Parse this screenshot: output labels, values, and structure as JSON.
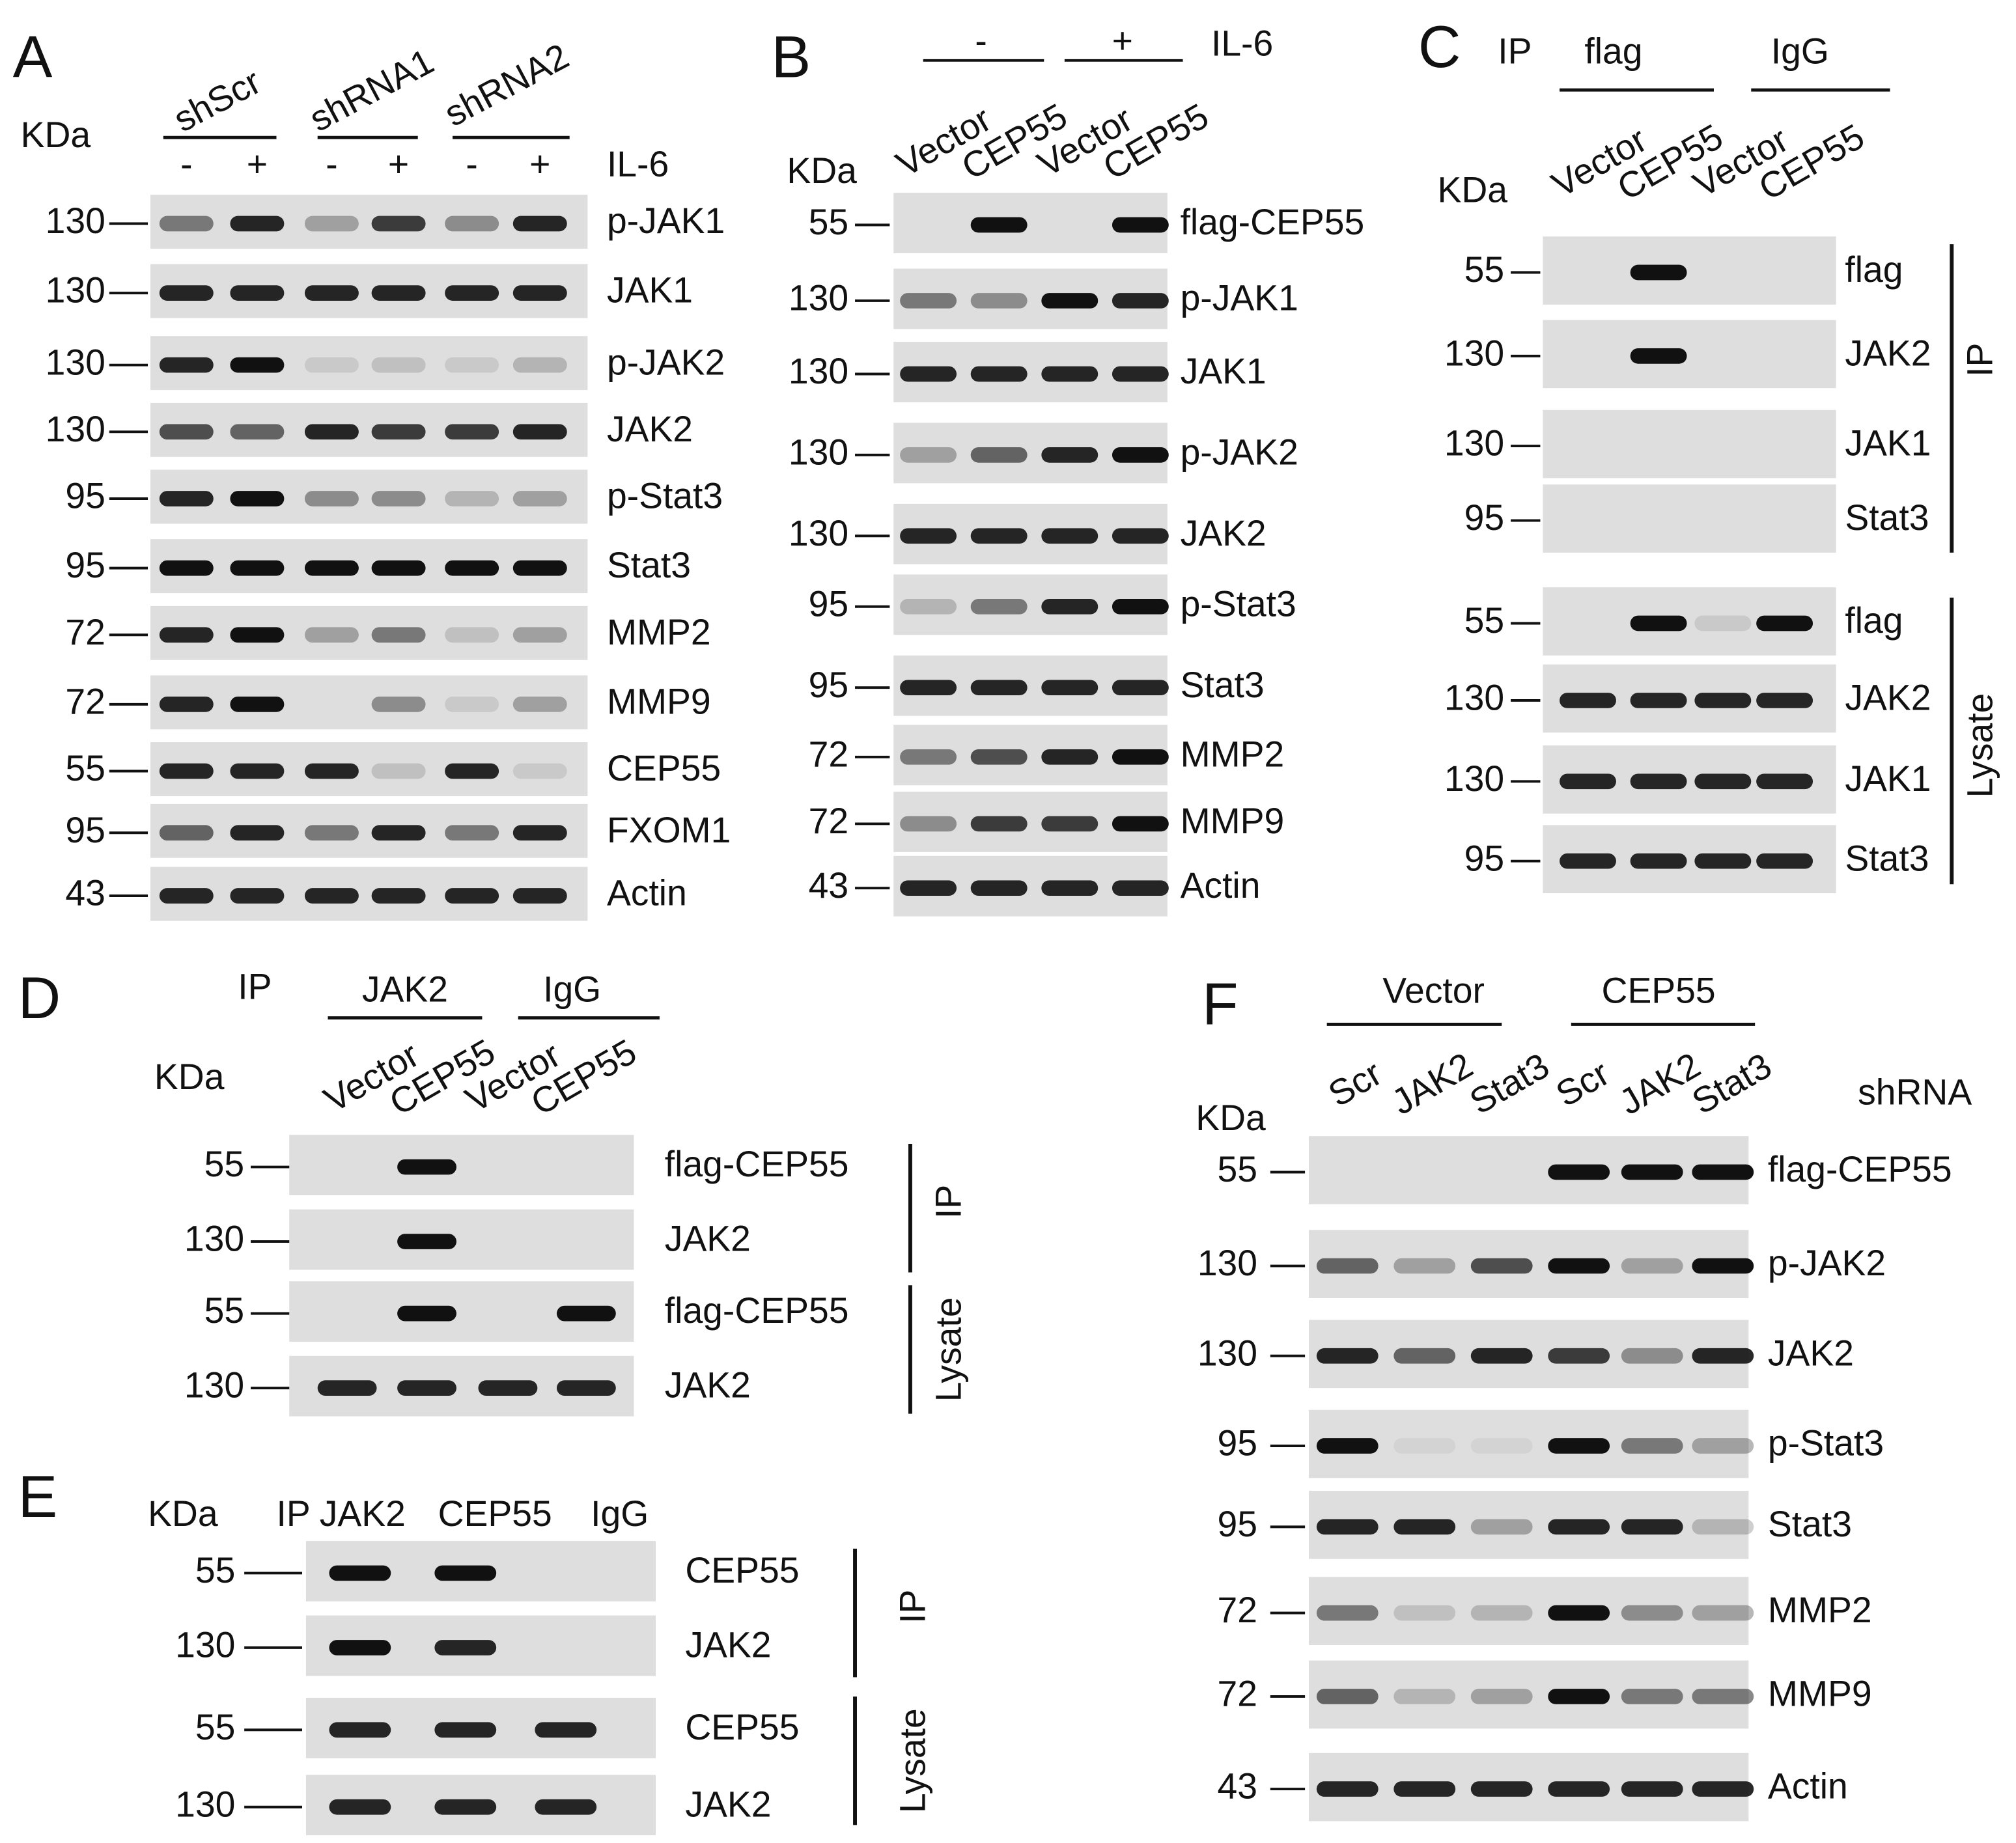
{
  "panels": [
    {
      "letter": "A",
      "kda": "KDa",
      "groups": [
        "shScr",
        "shRNA1",
        "shRNA2"
      ],
      "treatment": {
        "signs": [
          "-",
          "+",
          "-",
          "+",
          "-",
          "+"
        ],
        "label": "IL-6"
      },
      "rows": [
        {
          "mw": 130,
          "label": "p-JAK1"
        },
        {
          "mw": 130,
          "label": "JAK1"
        },
        {
          "mw": 130,
          "label": "p-JAK2"
        },
        {
          "mw": 130,
          "label": "JAK2"
        },
        {
          "mw": 95,
          "label": "p-Stat3"
        },
        {
          "mw": 95,
          "label": "Stat3"
        },
        {
          "mw": 72,
          "label": "MMP2"
        },
        {
          "mw": 72,
          "label": "MMP9"
        },
        {
          "mw": 55,
          "label": "CEP55"
        },
        {
          "mw": 95,
          "label": "FXOM1"
        },
        {
          "mw": 43,
          "label": "Actin"
        }
      ]
    },
    {
      "letter": "B",
      "kda": "KDa",
      "treatment": {
        "signs": [
          "-",
          "+"
        ],
        "label": "IL-6"
      },
      "lanes": [
        "Vector",
        "CEP55",
        "Vector",
        "CEP55"
      ],
      "rows": [
        {
          "mw": 55,
          "label": "flag-CEP55"
        },
        {
          "mw": 130,
          "label": "p-JAK1"
        },
        {
          "mw": 130,
          "label": "JAK1"
        },
        {
          "mw": 130,
          "label": "p-JAK2"
        },
        {
          "mw": 130,
          "label": "JAK2"
        },
        {
          "mw": 95,
          "label": "p-Stat3"
        },
        {
          "mw": 95,
          "label": "Stat3"
        },
        {
          "mw": 72,
          "label": "MMP2"
        },
        {
          "mw": 72,
          "label": "MMP9"
        },
        {
          "mw": 43,
          "label": "Actin"
        }
      ]
    },
    {
      "letter": "C",
      "ip": "IP",
      "kda": "KDa",
      "groups": [
        "flag",
        "IgG"
      ],
      "lanes": [
        "Vector",
        "CEP55",
        "Vector",
        "CEP55"
      ],
      "rows": [
        {
          "mw": 55,
          "label": "flag"
        },
        {
          "mw": 130,
          "label": "JAK2"
        },
        {
          "mw": 130,
          "label": "JAK1"
        },
        {
          "mw": 95,
          "label": "Stat3"
        },
        {
          "mw": 55,
          "label": "flag"
        },
        {
          "mw": 130,
          "label": "JAK2"
        },
        {
          "mw": 130,
          "label": "JAK1"
        },
        {
          "mw": 95,
          "label": "Stat3"
        }
      ],
      "brackets": [
        "IP",
        "Lysate"
      ]
    },
    {
      "letter": "D",
      "ip": "IP",
      "kda": "KDa",
      "groups": [
        "JAK2",
        "IgG"
      ],
      "lanes": [
        "Vector",
        "CEP55",
        "Vector",
        "CEP55"
      ],
      "rows": [
        {
          "mw": 55,
          "label": "flag-CEP55"
        },
        {
          "mw": 130,
          "label": "JAK2"
        },
        {
          "mw": 55,
          "label": "flag-CEP55"
        },
        {
          "mw": 130,
          "label": "JAK2"
        }
      ],
      "brackets": [
        "IP",
        "Lysate"
      ]
    },
    {
      "letter": "E",
      "ip": "IP",
      "kda": "KDa",
      "lanes": [
        "JAK2",
        "CEP55",
        "IgG"
      ],
      "rows": [
        {
          "mw": 55,
          "label": "CEP55"
        },
        {
          "mw": 130,
          "label": "JAK2"
        },
        {
          "mw": 55,
          "label": "CEP55"
        },
        {
          "mw": 130,
          "label": "JAK2"
        }
      ],
      "brackets": [
        "IP",
        "Lysate"
      ]
    },
    {
      "letter": "F",
      "kda": "KDa",
      "groups": [
        "Vector",
        "CEP55"
      ],
      "lanes": [
        "Scr",
        "JAK2",
        "Stat3",
        "Scr",
        "JAK2",
        "Stat3"
      ],
      "suffix": "shRNA",
      "rows": [
        {
          "mw": 55,
          "label": "flag-CEP55"
        },
        {
          "mw": 130,
          "label": "p-JAK2"
        },
        {
          "mw": 130,
          "label": "JAK2"
        },
        {
          "mw": 95,
          "label": "p-Stat3"
        },
        {
          "mw": 95,
          "label": "Stat3"
        },
        {
          "mw": 72,
          "label": "MMP2"
        },
        {
          "mw": 72,
          "label": "MMP9"
        },
        {
          "mw": 43,
          "label": "Actin"
        }
      ]
    }
  ]
}
